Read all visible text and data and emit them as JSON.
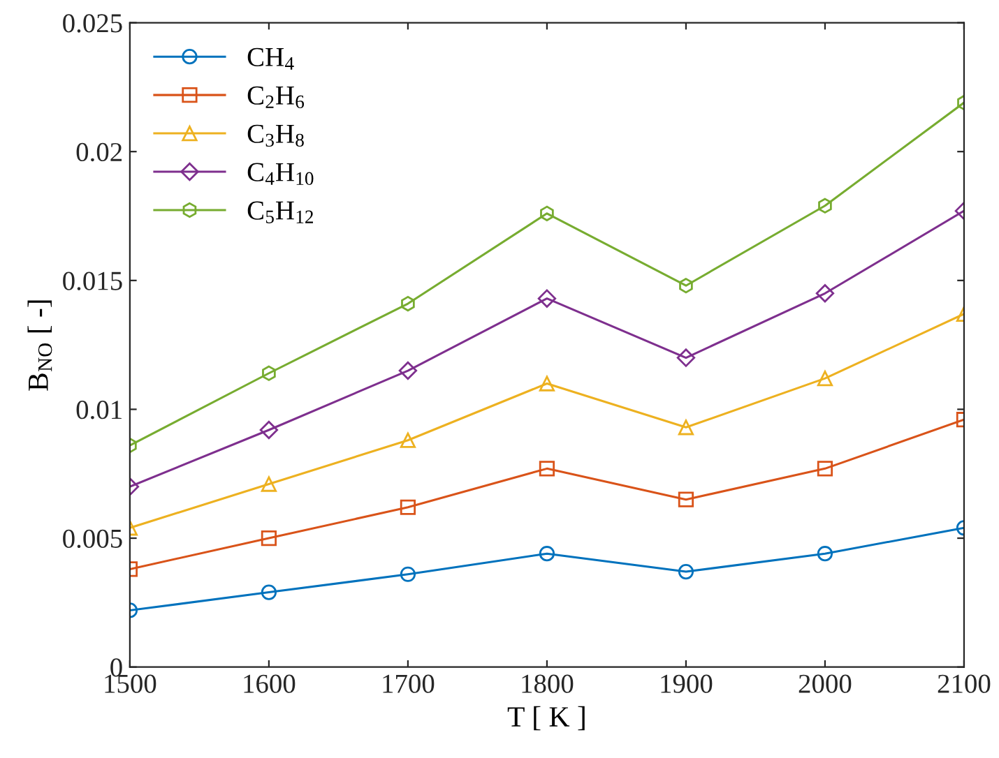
{
  "chart_data": {
    "type": "line",
    "xlabel": "T [ K ]",
    "ylabel": "B$_{NO}$ [ -]",
    "x": [
      1500,
      1600,
      1700,
      1800,
      1900,
      2000,
      2100
    ],
    "series": [
      {
        "name": "CH$_{4}$",
        "color": "#0072bd",
        "marker": "circle",
        "values": [
          0.0022,
          0.0029,
          0.0036,
          0.0044,
          0.0037,
          0.0044,
          0.0054
        ]
      },
      {
        "name": "C$_{2}$H$_{6}$",
        "color": "#d95319",
        "marker": "square",
        "values": [
          0.0038,
          0.005,
          0.0062,
          0.0077,
          0.0065,
          0.0077,
          0.0096
        ]
      },
      {
        "name": "C$_{3}$H$_{8}$",
        "color": "#edb120",
        "marker": "triangle",
        "values": [
          0.0054,
          0.0071,
          0.0088,
          0.011,
          0.0093,
          0.0112,
          0.0137
        ]
      },
      {
        "name": "C$_{4}$H$_{10}$",
        "color": "#7e2f8e",
        "marker": "diamond",
        "values": [
          0.007,
          0.0092,
          0.0115,
          0.0143,
          0.012,
          0.0145,
          0.0177
        ]
      },
      {
        "name": "C$_{5}$H$_{12}$",
        "color": "#77ac30",
        "marker": "star",
        "values": [
          0.0086,
          0.0114,
          0.0141,
          0.0176,
          0.0148,
          0.0179,
          0.0219
        ]
      }
    ],
    "xlim": [
      1500,
      2100
    ],
    "xticks": [
      1500,
      1600,
      1700,
      1800,
      1900,
      2000,
      2100
    ],
    "ylim": [
      0,
      0.025
    ],
    "yticks": [
      0,
      0.005,
      0.01,
      0.015,
      0.02,
      0.025
    ],
    "legend": "top left",
    "grid": false,
    "line_style": "solid"
  }
}
